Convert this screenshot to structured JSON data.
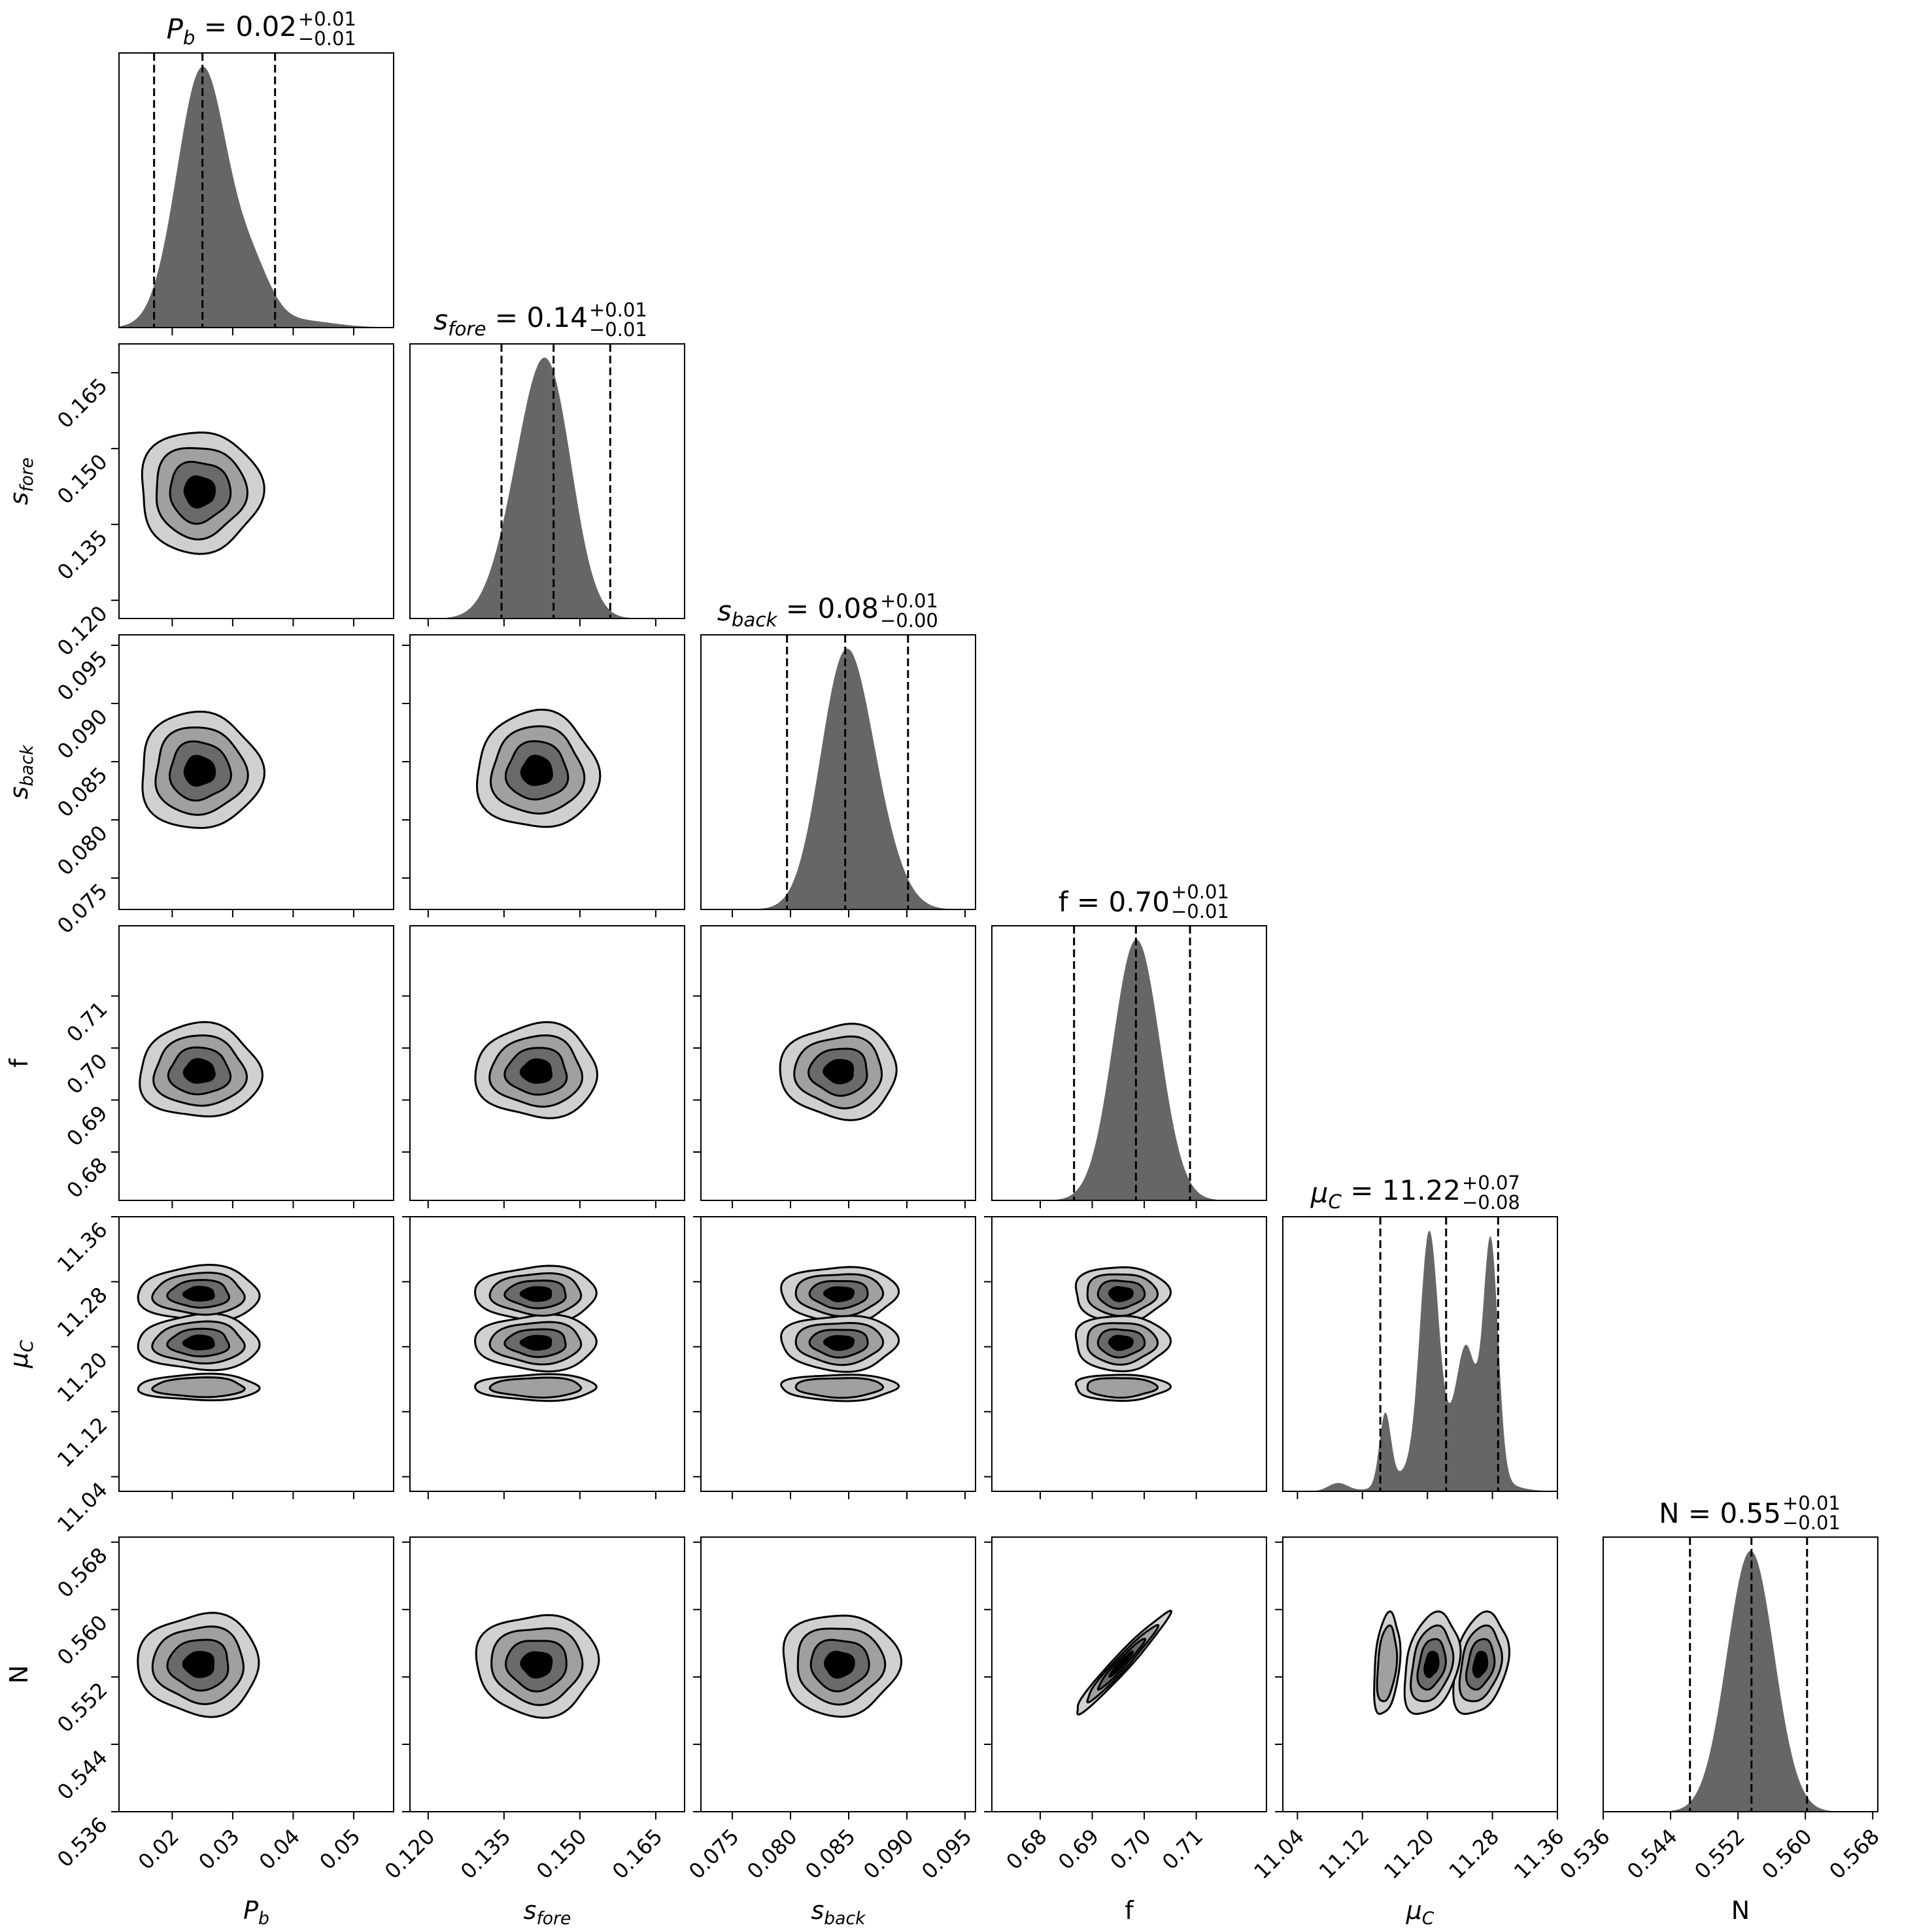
{
  "chart_data": {
    "type": "corner",
    "colors": {
      "histogram": "#666666",
      "levels": [
        "#d0d0d0",
        "#a0a0a0",
        "#6a6a6a",
        "#000000"
      ],
      "quantile_line": "#000000"
    },
    "grid": false,
    "parameters": [
      {
        "label": {
          "symbol": "P",
          "sub": "b",
          "italic": true
        },
        "title": {
          "value": "0.02",
          "plus": "+0.01",
          "minus": "−0.01"
        },
        "range": [
          0.0112,
          0.0566
        ],
        "ticks": [
          0.02,
          0.03,
          0.04,
          0.05
        ],
        "tick_labels": [
          "0.02",
          "0.03",
          "0.04",
          "0.05"
        ],
        "quantiles": [
          0.017,
          0.025,
          0.037
        ],
        "peaks": [
          {
            "x": 0.025,
            "width": 0.0042,
            "height": 1.0
          },
          {
            "x": 0.0335,
            "width": 0.003,
            "height": 0.17
          },
          {
            "x": 0.04,
            "width": 0.006,
            "height": 0.03
          }
        ],
        "modes2d": [
          {
            "x": 0.0245,
            "width": 0.005,
            "weight": 1
          }
        ]
      },
      {
        "label": {
          "symbol": "s",
          "sub": "fore",
          "italic": true
        },
        "title": {
          "value": "0.14",
          "plus": "+0.01",
          "minus": "−0.01"
        },
        "range": [
          0.1164,
          0.1707
        ],
        "ticks": [
          0.12,
          0.135,
          0.15,
          0.165
        ],
        "tick_labels": [
          "0.120",
          "0.135",
          "0.150",
          "0.165"
        ],
        "quantiles": [
          0.1345,
          0.1448,
          0.156
        ],
        "peaks": [
          {
            "x": 0.1447,
            "width": 0.0045,
            "height": 0.7
          },
          {
            "x": 0.1395,
            "width": 0.005,
            "height": 0.5
          }
        ],
        "modes2d": [
          {
            "x": 0.1415,
            "width": 0.006,
            "weight": 1
          }
        ]
      },
      {
        "label": {
          "symbol": "s",
          "sub": "back",
          "italic": true
        },
        "title": {
          "value": "0.08",
          "plus": "+0.01",
          "minus": "−0.00"
        },
        "range": [
          0.0723,
          0.0959
        ],
        "ticks": [
          0.075,
          0.08,
          0.085,
          0.09,
          0.095
        ],
        "tick_labels": [
          "0.075",
          "0.080",
          "0.085",
          "0.090",
          "0.095"
        ],
        "quantiles": [
          0.0797,
          0.0847,
          0.0901
        ],
        "peaks": [
          {
            "x": 0.0846,
            "width": 0.0021,
            "height": 1.0
          },
          {
            "x": 0.0875,
            "width": 0.002,
            "height": 0.22
          }
        ],
        "modes2d": [
          {
            "x": 0.0842,
            "width": 0.0025,
            "weight": 1
          }
        ]
      },
      {
        "label": {
          "symbol": "f",
          "sub": "",
          "italic": false
        },
        "title": {
          "value": "0.70",
          "plus": "+0.01",
          "minus": "−0.01"
        },
        "range": [
          0.6707,
          0.7235
        ],
        "ticks": [
          0.68,
          0.69,
          0.7,
          0.71
        ],
        "tick_labels": [
          "0.68",
          "0.69",
          "0.70",
          "0.71"
        ],
        "quantiles": [
          0.6865,
          0.6984,
          0.7088
        ],
        "peaks": [
          {
            "x": 0.6985,
            "width": 0.0045,
            "height": 1.0
          }
        ],
        "modes2d": [
          {
            "x": 0.6955,
            "width": 0.0045,
            "weight": 1
          }
        ]
      },
      {
        "label": {
          "symbol": "μ",
          "sub": "C",
          "italic": true
        },
        "title": {
          "value": "11.22",
          "plus": "+0.07",
          "minus": "−0.08"
        },
        "range": [
          11.022,
          11.36
        ],
        "ticks": [
          11.04,
          11.12,
          11.2,
          11.28,
          11.36
        ],
        "tick_labels": [
          "11.04",
          "11.12",
          "11.20",
          "11.28",
          "11.36"
        ],
        "quantiles": [
          11.142,
          11.223,
          11.287
        ],
        "peaks": [
          {
            "x": 11.202,
            "width": 0.011,
            "height": 0.8
          },
          {
            "x": 11.278,
            "width": 0.009,
            "height": 0.84
          },
          {
            "x": 11.248,
            "width": 0.012,
            "height": 0.38
          },
          {
            "x": 11.148,
            "width": 0.007,
            "height": 0.26
          },
          {
            "x": 11.09,
            "width": 0.012,
            "height": 0.03
          },
          {
            "x": 11.225,
            "width": 0.04,
            "height": 0.18
          }
        ],
        "modes2d": [
          {
            "x": 11.265,
            "width": 0.017,
            "weight": 1
          },
          {
            "x": 11.205,
            "width": 0.017,
            "weight": 1
          },
          {
            "x": 11.15,
            "width": 0.008,
            "weight": 0.45
          }
        ]
      },
      {
        "label": {
          "symbol": "N",
          "sub": "",
          "italic": false
        },
        "title": {
          "value": "0.55",
          "plus": "+0.01",
          "minus": "−0.01"
        },
        "range": [
          0.536,
          0.5686
        ],
        "ticks": [
          0.536,
          0.544,
          0.552,
          0.56,
          0.568
        ],
        "tick_labels": [
          "0.536",
          "0.544",
          "0.552",
          "0.560",
          "0.568"
        ],
        "quantiles": [
          0.5463,
          0.5536,
          0.5602
        ],
        "peaks": [
          {
            "x": 0.5535,
            "width": 0.0028,
            "height": 1.0
          }
        ],
        "modes2d": [
          {
            "x": 0.5535,
            "width": 0.003,
            "weight": 1
          }
        ]
      }
    ],
    "correlations": [
      {
        "pair": [
          3,
          5
        ],
        "rho": 0.97
      },
      {
        "pair": [
          4,
          5
        ],
        "rho": 0.3
      }
    ]
  }
}
